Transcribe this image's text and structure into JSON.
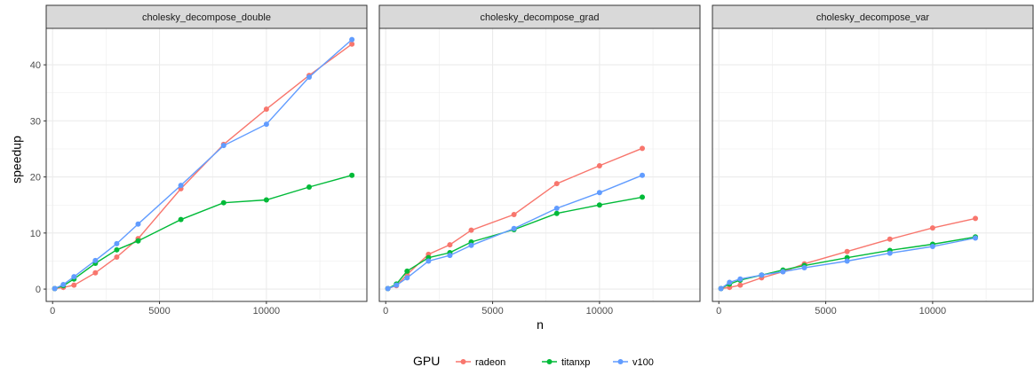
{
  "chart_data": {
    "type": "line",
    "ylabel": "speedup",
    "xlabel": "n",
    "xlim": [
      -300,
      14700
    ],
    "ylim": [
      -2.2,
      46.5
    ],
    "xticks": [
      0,
      5000,
      10000
    ],
    "xtick_labels": [
      "0",
      "5000",
      "10000"
    ],
    "yticks": [
      0,
      10,
      20,
      30,
      40
    ],
    "ytick_labels": [
      "0",
      "10",
      "20",
      "30",
      "40"
    ],
    "legend": {
      "title": "GPU",
      "position": "bottom",
      "entries": [
        "radeon",
        "titanxp",
        "v100"
      ]
    },
    "colors": {
      "radeon": "#F8766D",
      "titanxp": "#00BA38",
      "v100": "#619CFF"
    },
    "grid": true,
    "facets": [
      {
        "title": "cholesky_decompose_double",
        "series": [
          {
            "name": "radeon",
            "x": [
              100,
              500,
              1000,
              2000,
              3000,
              4000,
              6000,
              8000,
              10000,
              12000,
              14000
            ],
            "y": [
              0.1,
              0.3,
              0.7,
              2.9,
              5.7,
              9.0,
              17.9,
              25.8,
              32.1,
              38.1,
              43.7
            ]
          },
          {
            "name": "titanxp",
            "x": [
              100,
              500,
              1000,
              2000,
              3000,
              4000,
              6000,
              8000,
              10000,
              12000,
              14000
            ],
            "y": [
              0.1,
              0.6,
              1.8,
              4.6,
              7.0,
              8.6,
              12.4,
              15.4,
              15.9,
              18.2,
              20.3
            ]
          },
          {
            "name": "v100",
            "x": [
              100,
              500,
              1000,
              2000,
              3000,
              4000,
              6000,
              8000,
              10000,
              12000,
              14000
            ],
            "y": [
              0.1,
              0.8,
              2.2,
              5.1,
              8.1,
              11.6,
              18.5,
              25.6,
              29.4,
              37.8,
              44.5
            ]
          }
        ]
      },
      {
        "title": "cholesky_decompose_grad",
        "series": [
          {
            "name": "radeon",
            "x": [
              100,
              500,
              1000,
              2000,
              3000,
              4000,
              6000,
              8000,
              10000,
              12000
            ],
            "y": [
              0.1,
              0.6,
              2.6,
              6.2,
              7.9,
              10.5,
              13.3,
              18.8,
              22.0,
              25.1
            ]
          },
          {
            "name": "titanxp",
            "x": [
              100,
              500,
              1000,
              2000,
              3000,
              4000,
              6000,
              8000,
              10000,
              12000
            ],
            "y": [
              0.1,
              0.9,
              3.2,
              5.6,
              6.5,
              8.4,
              10.6,
              13.5,
              15.0,
              16.4
            ]
          },
          {
            "name": "v100",
            "x": [
              100,
              500,
              1000,
              2000,
              3000,
              4000,
              6000,
              8000,
              10000,
              12000
            ],
            "y": [
              0.1,
              0.7,
              2.0,
              5.0,
              6.0,
              7.8,
              10.8,
              14.4,
              17.2,
              20.3
            ]
          }
        ]
      },
      {
        "title": "cholesky_decompose_var",
        "series": [
          {
            "name": "radeon",
            "x": [
              100,
              500,
              1000,
              2000,
              3000,
              4000,
              6000,
              8000,
              10000,
              12000
            ],
            "y": [
              0.1,
              0.3,
              0.7,
              2.0,
              3.1,
              4.5,
              6.7,
              8.9,
              10.9,
              12.6
            ]
          },
          {
            "name": "titanxp",
            "x": [
              100,
              500,
              1000,
              2000,
              3000,
              4000,
              6000,
              8000,
              10000,
              12000
            ],
            "y": [
              0.1,
              0.9,
              1.6,
              2.5,
              3.4,
              4.2,
              5.6,
              6.9,
              8.0,
              9.3
            ]
          },
          {
            "name": "v100",
            "x": [
              100,
              500,
              1000,
              2000,
              3000,
              4000,
              6000,
              8000,
              10000,
              12000
            ],
            "y": [
              0.1,
              1.2,
              1.8,
              2.5,
              3.1,
              3.8,
              5.0,
              6.4,
              7.6,
              9.1
            ]
          }
        ]
      }
    ]
  }
}
